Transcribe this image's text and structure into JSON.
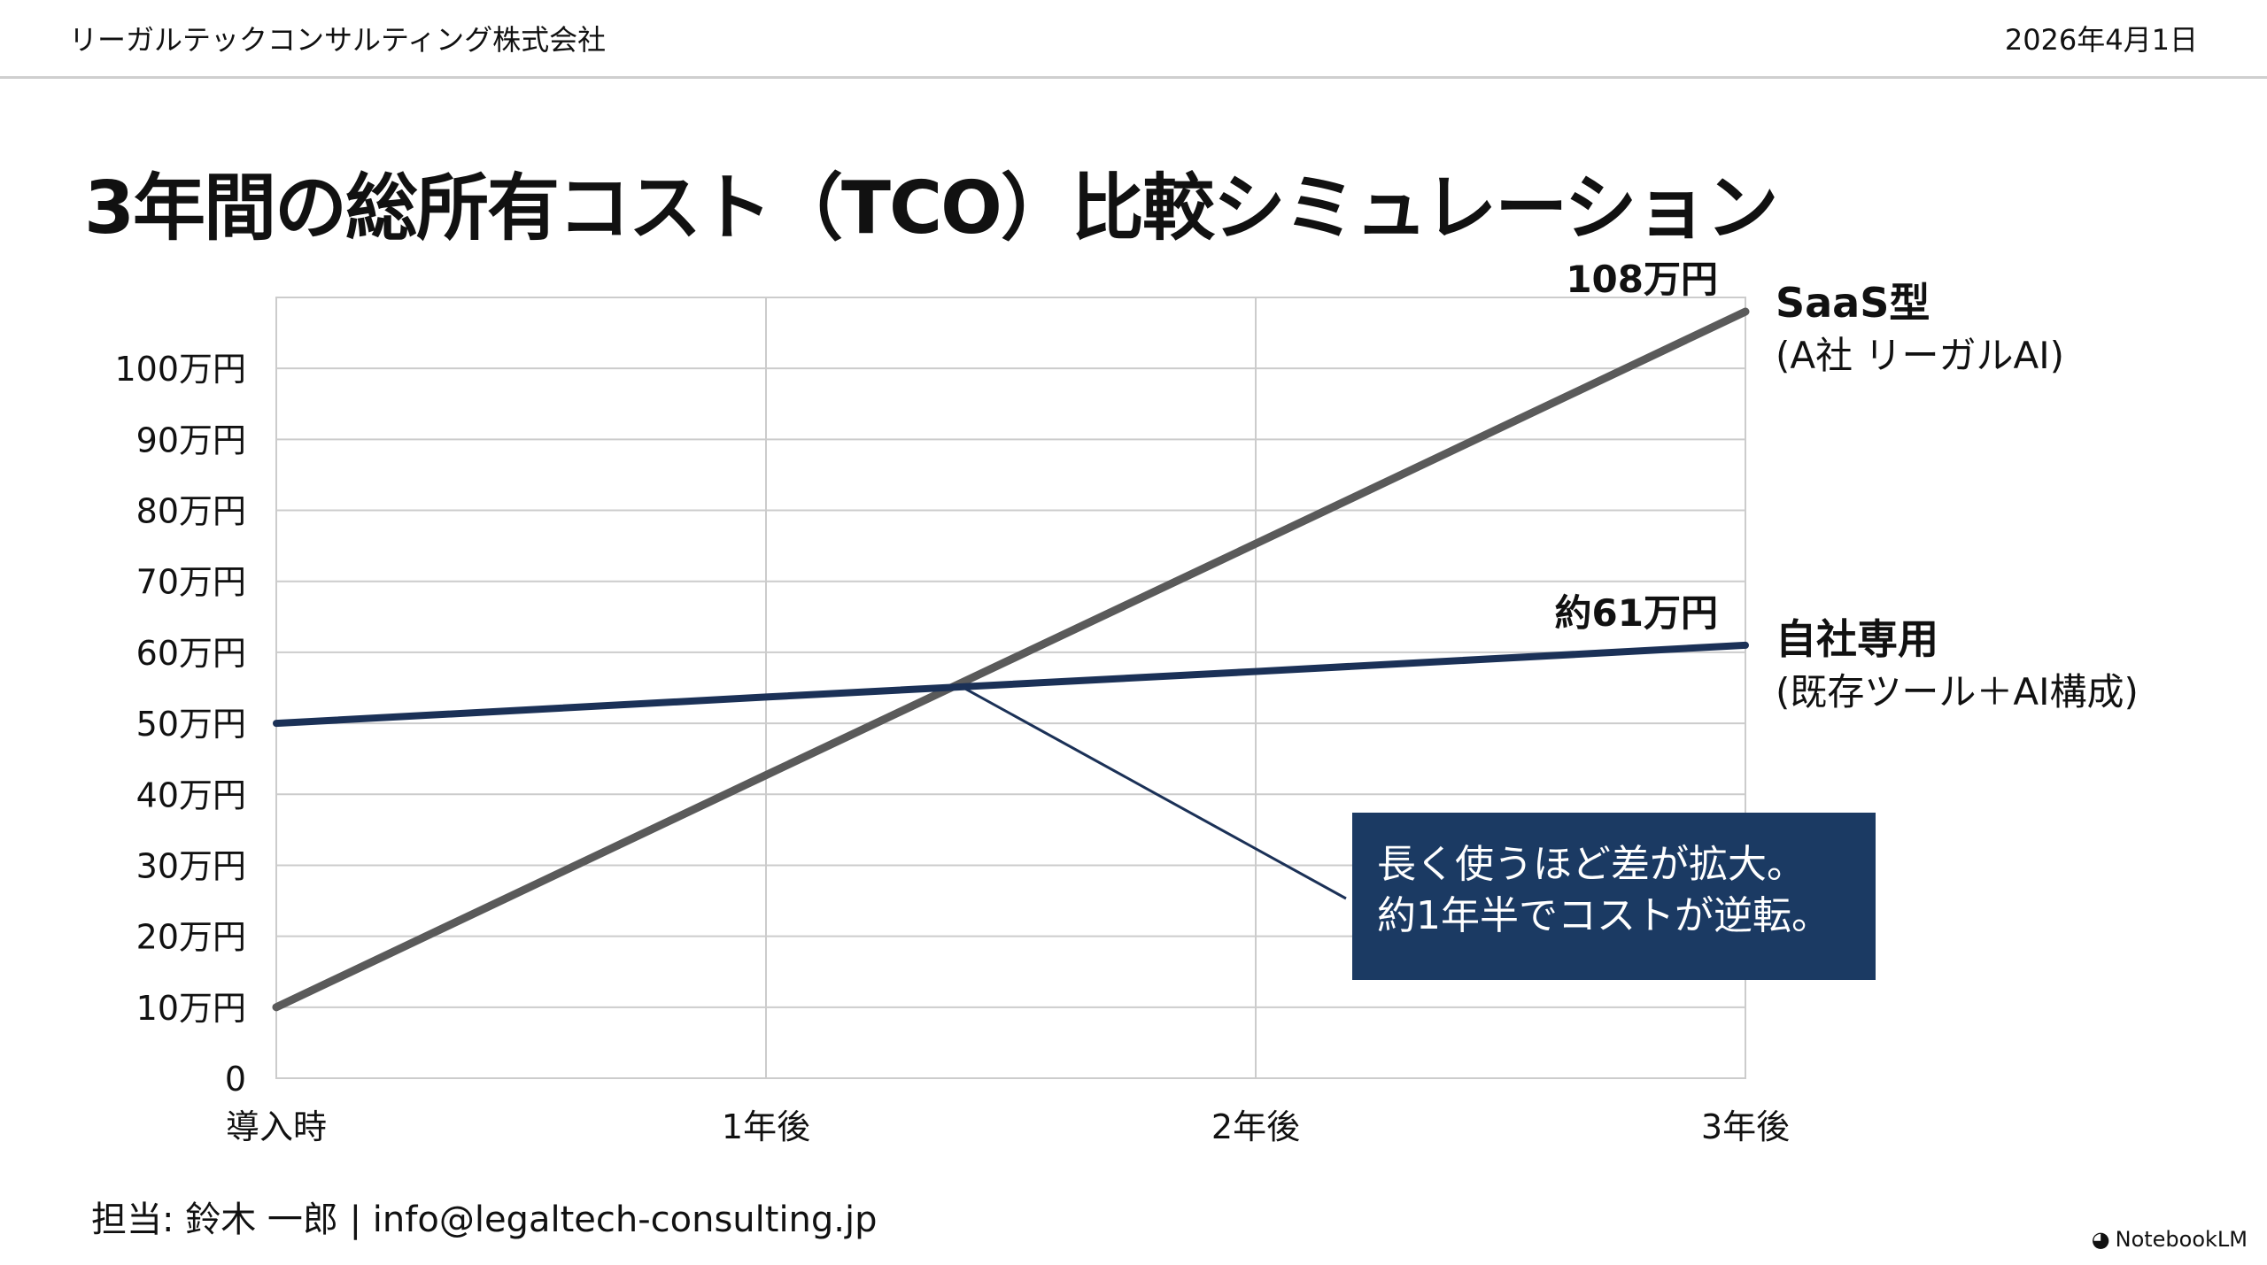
{
  "header": {
    "company": "リーガルテックコンサルティング株式会社",
    "date": "2026年4月1日"
  },
  "title": "3年間の総所有コスト（TCO）比較シミュレーション",
  "chart_data": {
    "type": "line",
    "categories": [
      "導入時",
      "1年後",
      "2年後",
      "3年後"
    ],
    "x": [
      0,
      1,
      2,
      3
    ],
    "ylim": [
      0,
      110
    ],
    "yticks": [
      0,
      10,
      20,
      30,
      40,
      50,
      60,
      70,
      80,
      90,
      100
    ],
    "ytick_labels": [
      "0",
      "10万円",
      "20万円",
      "30万円",
      "40万円",
      "50万円",
      "60万円",
      "70万円",
      "80万円",
      "90万円",
      "100万円"
    ],
    "grid": true,
    "series": [
      {
        "name": "SaaS型",
        "subname": "(A社 リーガルAI)",
        "values": [
          10,
          42.7,
          75.3,
          108
        ],
        "end_label": "108万円",
        "color": "#5a5a5a"
      },
      {
        "name": "自社専用",
        "subname": "(既存ツール＋AI構成)",
        "values": [
          50,
          53.7,
          57.3,
          61
        ],
        "end_label": "約61万円",
        "color": "#1b3157"
      }
    ],
    "annotation": {
      "lines": [
        "長く使うほど差が拡大。",
        "約1年半でコストが逆転。"
      ],
      "crossover_x": 1.4
    }
  },
  "footer": {
    "contact": "担当: 鈴木 一郎 | info@legaltech-consulting.jp",
    "brand": "NotebookLM"
  },
  "colors": {
    "callout_bg": "#1b3a63",
    "grid": "#cccccc"
  }
}
